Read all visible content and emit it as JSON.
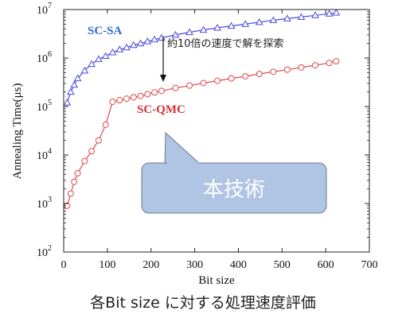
{
  "caption": "各Bit size に対する処理速度評価",
  "chart_data": {
    "type": "line",
    "title": "",
    "xlabel": "Bit size",
    "ylabel": "Annealing Time(μs)",
    "xlim": [
      0,
      700
    ],
    "ylim": [
      100,
      10000000
    ],
    "yscale": "log",
    "xticks": [
      0,
      100,
      200,
      300,
      400,
      500,
      600,
      700
    ],
    "ytick_exponents": [
      2,
      3,
      4,
      5,
      6,
      7
    ],
    "ytick_base": "10",
    "grid": false,
    "series": [
      {
        "name": "SC-SA",
        "color": "#4a4ae0",
        "marker": "triangle",
        "x": [
          8,
          16,
          24,
          32,
          48,
          64,
          80,
          96,
          112,
          128,
          144,
          160,
          176,
          192,
          208,
          224,
          256,
          288,
          320,
          352,
          384,
          416,
          448,
          480,
          512,
          544,
          576,
          608,
          624
        ],
        "y": [
          120000,
          200000,
          280000,
          380000,
          550000,
          750000,
          950000,
          1100000,
          1300000,
          1500000,
          1650000,
          1850000,
          2000000,
          2200000,
          2400000,
          2600000,
          3000000,
          3400000,
          3800000,
          4200000,
          4600000,
          5000000,
          5500000,
          6000000,
          6500000,
          7000000,
          7600000,
          8200000,
          8600000
        ]
      },
      {
        "name": "SC-QMC",
        "color": "#e04a4a",
        "marker": "circle",
        "x": [
          8,
          16,
          24,
          32,
          48,
          64,
          80,
          96,
          112,
          128,
          144,
          160,
          176,
          192,
          208,
          224,
          256,
          288,
          320,
          352,
          384,
          416,
          448,
          480,
          512,
          544,
          576,
          608,
          624
        ],
        "y": [
          900,
          1600,
          2800,
          4200,
          7500,
          12000,
          20000,
          42000,
          125000,
          135000,
          145000,
          155000,
          165000,
          180000,
          195000,
          210000,
          240000,
          270000,
          305000,
          340000,
          380000,
          420000,
          470000,
          520000,
          575000,
          640000,
          710000,
          790000,
          860000
        ]
      }
    ],
    "annotations": {
      "speedup_note": "約10倍の速度で解を探索",
      "callout": "本技術"
    }
  }
}
